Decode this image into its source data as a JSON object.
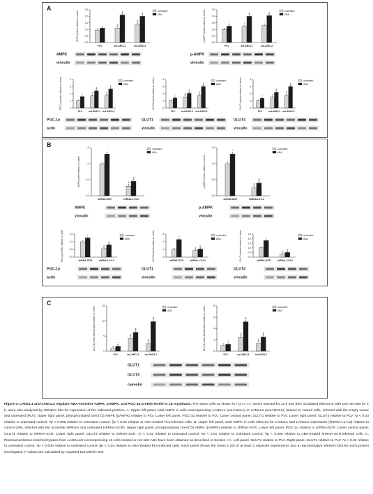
{
  "figure": {
    "panel_labels": [
      "A",
      "B",
      "C"
    ]
  },
  "legend": {
    "untreated": "untreated",
    "aba": "ABA"
  },
  "colors": {
    "untreated": "#d4d4d4",
    "aba": "#1c1c1c",
    "bar_stroke": "#333333"
  },
  "chart_data": [
    {
      "type": "bar",
      "panel": "A",
      "id": "A1",
      "ylabel": "AMPK protein relative to control",
      "categories": [
        "PLV",
        "ovLANCL1",
        "ovLANCL2"
      ],
      "series": [
        {
          "name": "untreated",
          "values": [
            0.95,
            1.1,
            1.4
          ]
        },
        {
          "name": "ABA",
          "values": [
            1.1,
            2.1,
            2.0
          ]
        }
      ],
      "marks": [
        [
          "",
          ""
        ],
        [
          "#",
          "§"
        ],
        [
          "#",
          "§"
        ]
      ],
      "ylim": [
        0,
        2.5
      ],
      "yticks": [
        "0.0",
        "0.5",
        "1.0",
        "1.5",
        "2.0",
        "2.5"
      ],
      "blots": [
        "AMPK",
        "vinculin"
      ]
    },
    {
      "type": "bar",
      "panel": "A",
      "id": "A2",
      "ylabel": "p-AMPK protein relative to control",
      "categories": [
        "PLV",
        "ovLANCL1",
        "ovLANCL2"
      ],
      "series": [
        {
          "name": "untreated",
          "values": [
            1.0,
            1.2,
            1.3
          ]
        },
        {
          "name": "ABA",
          "values": [
            1.25,
            2.0,
            2.05
          ]
        }
      ],
      "marks": [
        [
          "",
          "*"
        ],
        [
          "*",
          "§"
        ],
        [
          "*",
          "§"
        ]
      ],
      "ylim": [
        0,
        2.5
      ],
      "yticks": [
        "0.0",
        "0.5",
        "1.0",
        "1.5",
        "2.0",
        "2.5"
      ],
      "blots": [
        "p-AMPK",
        "vinculin"
      ]
    },
    {
      "type": "bar",
      "panel": "A",
      "id": "A3",
      "ylabel": "PGC-1α protein relative to control",
      "categories": [
        "PLV",
        "ovLANCL1",
        "ovLANCL2"
      ],
      "series": [
        {
          "name": "untreated",
          "values": [
            1.0,
            1.7,
            1.75
          ]
        },
        {
          "name": "ABA",
          "values": [
            1.6,
            2.4,
            2.65
          ]
        }
      ],
      "marks": [
        [
          "",
          "*"
        ],
        [
          "#",
          "§"
        ],
        [
          "#",
          "§"
        ]
      ],
      "ylim": [
        0,
        4
      ],
      "yticks": [
        "0",
        "1",
        "2",
        "3",
        "4"
      ],
      "blots": [
        "PGC-1α",
        "actin"
      ]
    },
    {
      "type": "bar",
      "panel": "A",
      "id": "A4",
      "ylabel": "GLUT1 protein relative to control",
      "categories": [
        "PLV",
        "ovLANCL1",
        "ovLANCL2"
      ],
      "series": [
        {
          "name": "untreated",
          "values": [
            1.0,
            1.55,
            1.75
          ]
        },
        {
          "name": "ABA",
          "values": [
            1.4,
            2.05,
            3.0
          ]
        }
      ],
      "marks": [
        [
          "",
          "*"
        ],
        [
          "#",
          "§"
        ],
        [
          "#",
          "§"
        ]
      ],
      "ylim": [
        0,
        4
      ],
      "yticks": [
        "0",
        "1",
        "2",
        "3",
        "4"
      ],
      "blots": [
        "GLUT1",
        "vinculin"
      ]
    },
    {
      "type": "bar",
      "panel": "A",
      "id": "A5",
      "ylabel": "GLUT4 protein relative to control",
      "categories": [
        "PLV",
        "ovLANCL1",
        "ovLANCL2"
      ],
      "series": [
        {
          "name": "untreated",
          "values": [
            1.0,
            1.45,
            1.8
          ]
        },
        {
          "name": "ABA",
          "values": [
            1.35,
            2.2,
            3.0
          ]
        }
      ],
      "marks": [
        [
          "",
          "*"
        ],
        [
          "#",
          "§"
        ],
        [
          "#",
          "§"
        ]
      ],
      "ylim": [
        0,
        4
      ],
      "yticks": [
        "0",
        "1",
        "2",
        "3",
        "4"
      ],
      "blots": [
        "GLUT4",
        "vinculin"
      ]
    },
    {
      "type": "bar",
      "panel": "B",
      "id": "B1",
      "ylabel": "AMPK protein relative to control",
      "categories": [
        "shRNA-SCR",
        "shRNA-L1+L2"
      ],
      "series": [
        {
          "name": "untreated",
          "values": [
            1.0,
            0.3
          ]
        },
        {
          "name": "ABA",
          "values": [
            1.3,
            0.45
          ]
        }
      ],
      "marks": [
        [
          "",
          "*"
        ],
        [
          "#",
          "§"
        ]
      ],
      "ylim": [
        0,
        1.5
      ],
      "yticks": [
        "0.0",
        "0.5",
        "1.0",
        "1.5"
      ],
      "blots": [
        "AMPK",
        "vinculin"
      ]
    },
    {
      "type": "bar",
      "panel": "B",
      "id": "B2",
      "ylabel": "p-AMPK protein relative to control",
      "categories": [
        "shRNA-SCR",
        "shRNA-L1+L2"
      ],
      "series": [
        {
          "name": "untreated",
          "values": [
            1.0,
            0.25
          ]
        },
        {
          "name": "ABA",
          "values": [
            1.3,
            0.4
          ]
        }
      ],
      "marks": [
        [
          "",
          "*"
        ],
        [
          "#",
          "§"
        ]
      ],
      "ylim": [
        0,
        1.5
      ],
      "yticks": [
        "0.0",
        "0.5",
        "1.0",
        "1.5"
      ],
      "blots": [
        "p-AMPK",
        "vinculin"
      ]
    },
    {
      "type": "bar",
      "panel": "B",
      "id": "B3",
      "ylabel": "PGC-1α protein relative to control",
      "categories": [
        "shRNA-SCR",
        "shRNA-L1+L2"
      ],
      "series": [
        {
          "name": "untreated",
          "values": [
            1.0,
            0.55
          ]
        },
        {
          "name": "ABA",
          "values": [
            1.25,
            0.8
          ]
        }
      ],
      "marks": [
        [
          "",
          "*"
        ],
        [
          "#",
          "§"
        ]
      ],
      "ylim": [
        0,
        1.5
      ],
      "yticks": [
        "0.0",
        "0.5",
        "1.0",
        "1.5"
      ],
      "blots": [
        "PGC-1α",
        "actin"
      ]
    },
    {
      "type": "bar",
      "panel": "B",
      "id": "B4",
      "ylabel": "GLUT1 protein relative to control",
      "categories": [
        "shRNA-SCR",
        "shRNA-L1+L2"
      ],
      "series": [
        {
          "name": "untreated",
          "values": [
            1.0,
            0.85
          ]
        },
        {
          "name": "ABA",
          "values": [
            2.3,
            1.05
          ]
        }
      ],
      "marks": [
        [
          "",
          "*"
        ],
        [
          "#",
          "§"
        ]
      ],
      "ylim": [
        0,
        3
      ],
      "yticks": [
        "0",
        "1",
        "2",
        "3"
      ],
      "blots": [
        "GLUT1",
        "vinculin"
      ]
    },
    {
      "type": "bar",
      "panel": "B",
      "id": "B5",
      "ylabel": "GLUT4 protein relative to control",
      "categories": [
        "shRNA-SCR",
        "shRNA-L1+L2"
      ],
      "series": [
        {
          "name": "untreated",
          "values": [
            1.0,
            0.35
          ]
        },
        {
          "name": "ABA",
          "values": [
            1.8,
            0.5
          ]
        }
      ],
      "marks": [
        [
          "",
          "*"
        ],
        [
          "#",
          "§"
        ]
      ],
      "ylim": [
        0,
        2.5
      ],
      "yticks": [
        "0.0",
        "0.5",
        "1.0",
        "1.5",
        "2.0",
        "2.5"
      ],
      "blots": [
        "GLUT4",
        "vinculin"
      ]
    },
    {
      "type": "bar",
      "panel": "C",
      "id": "C1",
      "ylabel": "GLUT1 protein translocation relative to control",
      "categories": [
        "PLV",
        "ovLANCL1",
        "ovLANCL2"
      ],
      "series": [
        {
          "name": "untreated",
          "values": [
            1.0,
            4.2,
            2.5
          ]
        },
        {
          "name": "ABA",
          "values": [
            1.6,
            6.2,
            9.8
          ]
        }
      ],
      "marks": [
        [
          "",
          "*"
        ],
        [
          "#",
          "$"
        ],
        [
          "#",
          "$"
        ]
      ],
      "ylim": [
        0,
        15
      ],
      "yticks": [
        "0",
        "5",
        "10",
        "15"
      ],
      "blots": []
    },
    {
      "type": "bar",
      "panel": "C",
      "id": "C2",
      "ylabel": "GLUT4 protein translocation relative to control",
      "categories": [
        "PLV",
        "ovLANCL1",
        "ovLANCL2"
      ],
      "series": [
        {
          "name": "untreated",
          "values": [
            1.0,
            2.4,
            1.4
          ]
        },
        {
          "name": "ABA",
          "values": [
            1.2,
            5.2,
            2.5
          ]
        }
      ],
      "marks": [
        [
          "",
          "*"
        ],
        [
          "#",
          "$"
        ],
        [
          "#",
          "$"
        ]
      ],
      "ylim": [
        0,
        8
      ],
      "yticks": [
        "0",
        "2",
        "4",
        "6",
        "8"
      ],
      "blots": []
    }
  ],
  "panel_c_blots": [
    "GLUT1",
    "GLUT4",
    "caveolin"
  ],
  "caption": {
    "head": "Figure 4:  LANCL1 and LANCL2 regulate ABA-sensitive AMPK, pAMPK, and PGC-1α protein levels in L6 myoblasts.",
    "text1": " The same cells as shown in ",
    "ref1": "Figure 3A",
    "text2": ", serum-starved for 12 h and then incubated without or with 100 nM ABA for 1 h, were also analyzed by Western blot for expression of the indicated proteins. A. Upper left panel, total AMPK in cells overexpressing LANCL1 (ovLANCL1) or LANCL2 (ovLANCL2), relative to control cells, infected with the empty vector and untreated (PLV). Upper right panel, phosphorylated (Ser473) AMPK (pAMPK) relative to PLV. Lower left panel, PGC-1α relative to PLV. Lower central panel, GLUT1 relative to PLV. Lower right panel, GLUT4 relative to PLV. *p < 0.03 relative to untreated control, #p < 0.006 relative to untreated control; §p < 0.02 relative to ABA-treated PLV-infected cells. B. Upper left panel, total AMPK in cells silenced for LANCL1 and LANCL2 expression (shRNA-L1+L2) relative to control cells, infected with the scramble shRNAs and untreated (shRNA-SCR). Upper right panel, phosphorylated (Ser473) AMPK (pAMPK) relative to shRNA-SCR. Lower left panel, PGC-1α relative to shRNA-SCR. Lower central panel, GLUT1 relative to shRNA-SCR. Lower right panel, GLUT4 relative to shRNA-SCR. *p < 0.02 relative to untreated control, #p < 0.01 relative to untreated control; §p < 0.008 relative to ABA-treated shRNA-SCR-infected cells. C. Plasmamembrane-enriched lysates from LANCL1/2-overexpressing L6 cells treated or not with ABA have been obtained as described in Section ",
    "ref2": "2.8",
    "text3": ". Left panel, GLUT1 relative to PLV. Right panel, GLUT4 relative to PLV. *p < 0.04 relative to untreated control, #p < 0.008 relative to untreated control; $p < 0.03 relative to ABA-treated PLV-infected cells. Each panel shows the mean ± SD of at least 3 separate experiments and a representative Western blot for each protein investigated. P values are calculated by unpaired two-tailed t-test."
  }
}
